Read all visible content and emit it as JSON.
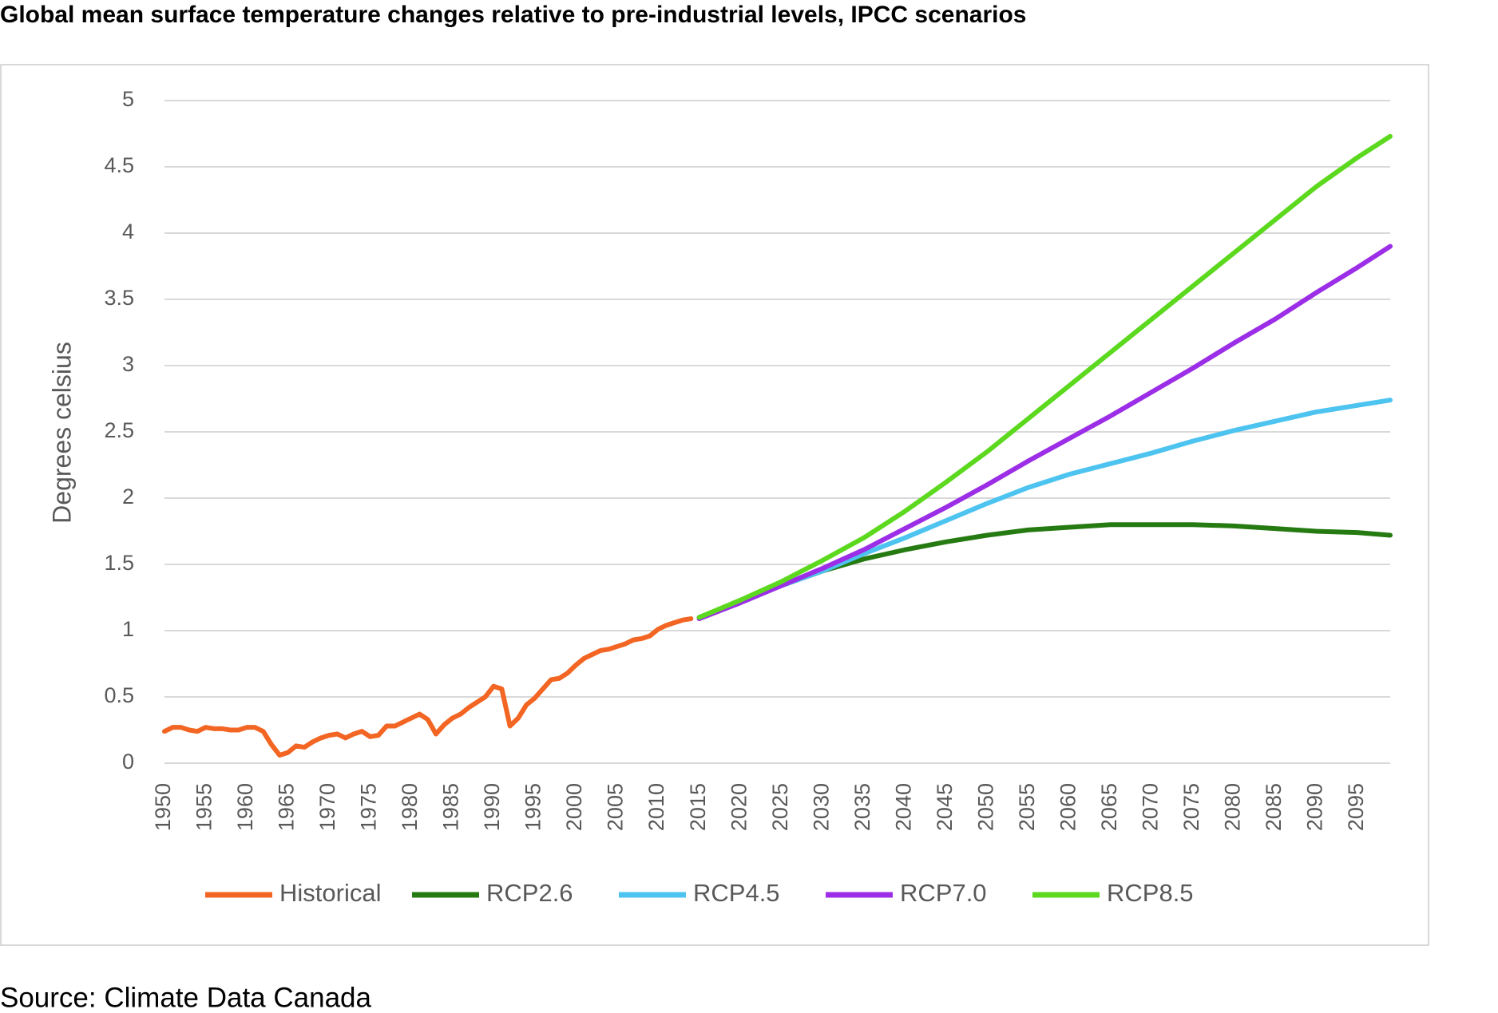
{
  "chart_data": {
    "type": "line",
    "title": "Global mean surface temperature changes relative to pre-industrial levels, IPCC scenarios",
    "y_label": "Degrees celsius",
    "source": "Source: Climate Data Canada",
    "xlim": [
      1950,
      2099
    ],
    "xticks": [
      1950,
      1955,
      1960,
      1965,
      1970,
      1975,
      1980,
      1985,
      1990,
      1995,
      2000,
      2005,
      2010,
      2015,
      2020,
      2025,
      2030,
      2035,
      2040,
      2045,
      2050,
      2055,
      2060,
      2065,
      2070,
      2075,
      2080,
      2085,
      2090,
      2095
    ],
    "ylim": [
      0,
      5
    ],
    "yticks": [
      0,
      0.5,
      1,
      1.5,
      2,
      2.5,
      3,
      3.5,
      4,
      4.5,
      5
    ],
    "grid": true,
    "legend": "bottom",
    "series": [
      {
        "name": "Historical",
        "color": "#f26522",
        "x": [
          1950,
          1951,
          1952,
          1953,
          1954,
          1955,
          1956,
          1957,
          1958,
          1959,
          1960,
          1961,
          1962,
          1963,
          1964,
          1965,
          1966,
          1967,
          1968,
          1969,
          1970,
          1971,
          1972,
          1973,
          1974,
          1975,
          1976,
          1977,
          1978,
          1979,
          1980,
          1981,
          1982,
          1983,
          1984,
          1985,
          1986,
          1987,
          1988,
          1989,
          1990,
          1991,
          1992,
          1993,
          1994,
          1995,
          1996,
          1997,
          1998,
          1999,
          2000,
          2001,
          2002,
          2003,
          2004,
          2005,
          2006,
          2007,
          2008,
          2009,
          2010,
          2011,
          2012,
          2013,
          2014
        ],
        "values": [
          0.24,
          0.27,
          0.27,
          0.25,
          0.24,
          0.27,
          0.26,
          0.26,
          0.25,
          0.25,
          0.27,
          0.27,
          0.24,
          0.14,
          0.06,
          0.08,
          0.13,
          0.12,
          0.16,
          0.19,
          0.21,
          0.22,
          0.19,
          0.22,
          0.24,
          0.2,
          0.21,
          0.28,
          0.28,
          0.31,
          0.34,
          0.37,
          0.33,
          0.22,
          0.29,
          0.34,
          0.37,
          0.42,
          0.46,
          0.5,
          0.58,
          0.56,
          0.28,
          0.34,
          0.44,
          0.49,
          0.56,
          0.63,
          0.64,
          0.68,
          0.74,
          0.79,
          0.82,
          0.85,
          0.86,
          0.88,
          0.9,
          0.93,
          0.94,
          0.96,
          1.01,
          1.04,
          1.06,
          1.08,
          1.09
        ]
      },
      {
        "name": "RCP2.6",
        "color": "#267a12",
        "x": [
          2015,
          2020,
          2025,
          2030,
          2035,
          2040,
          2045,
          2050,
          2055,
          2060,
          2065,
          2070,
          2075,
          2080,
          2085,
          2090,
          2095,
          2099
        ],
        "values": [
          1.1,
          1.22,
          1.34,
          1.45,
          1.54,
          1.61,
          1.67,
          1.72,
          1.76,
          1.78,
          1.8,
          1.8,
          1.8,
          1.79,
          1.77,
          1.75,
          1.74,
          1.72
        ]
      },
      {
        "name": "RCP4.5",
        "color": "#4dc3f0",
        "x": [
          2015,
          2020,
          2025,
          2030,
          2035,
          2040,
          2045,
          2050,
          2055,
          2060,
          2065,
          2070,
          2075,
          2080,
          2085,
          2090,
          2095,
          2099
        ],
        "values": [
          1.1,
          1.22,
          1.34,
          1.45,
          1.58,
          1.7,
          1.83,
          1.96,
          2.08,
          2.18,
          2.26,
          2.34,
          2.43,
          2.51,
          2.58,
          2.65,
          2.7,
          2.74
        ]
      },
      {
        "name": "RCP7.0",
        "color": "#9b2ee6",
        "x": [
          2015,
          2020,
          2025,
          2030,
          2035,
          2040,
          2045,
          2050,
          2055,
          2060,
          2065,
          2070,
          2075,
          2080,
          2085,
          2090,
          2095,
          2099
        ],
        "values": [
          1.09,
          1.21,
          1.34,
          1.47,
          1.61,
          1.77,
          1.93,
          2.1,
          2.28,
          2.45,
          2.62,
          2.8,
          2.98,
          3.17,
          3.35,
          3.55,
          3.74,
          3.9
        ]
      },
      {
        "name": "RCP8.5",
        "color": "#5cd91e",
        "x": [
          2015,
          2020,
          2025,
          2030,
          2035,
          2040,
          2045,
          2050,
          2055,
          2060,
          2065,
          2070,
          2075,
          2080,
          2085,
          2090,
          2095,
          2099
        ],
        "values": [
          1.1,
          1.23,
          1.37,
          1.53,
          1.7,
          1.9,
          2.12,
          2.35,
          2.6,
          2.85,
          3.1,
          3.35,
          3.6,
          3.85,
          4.1,
          4.35,
          4.57,
          4.73
        ]
      }
    ]
  }
}
